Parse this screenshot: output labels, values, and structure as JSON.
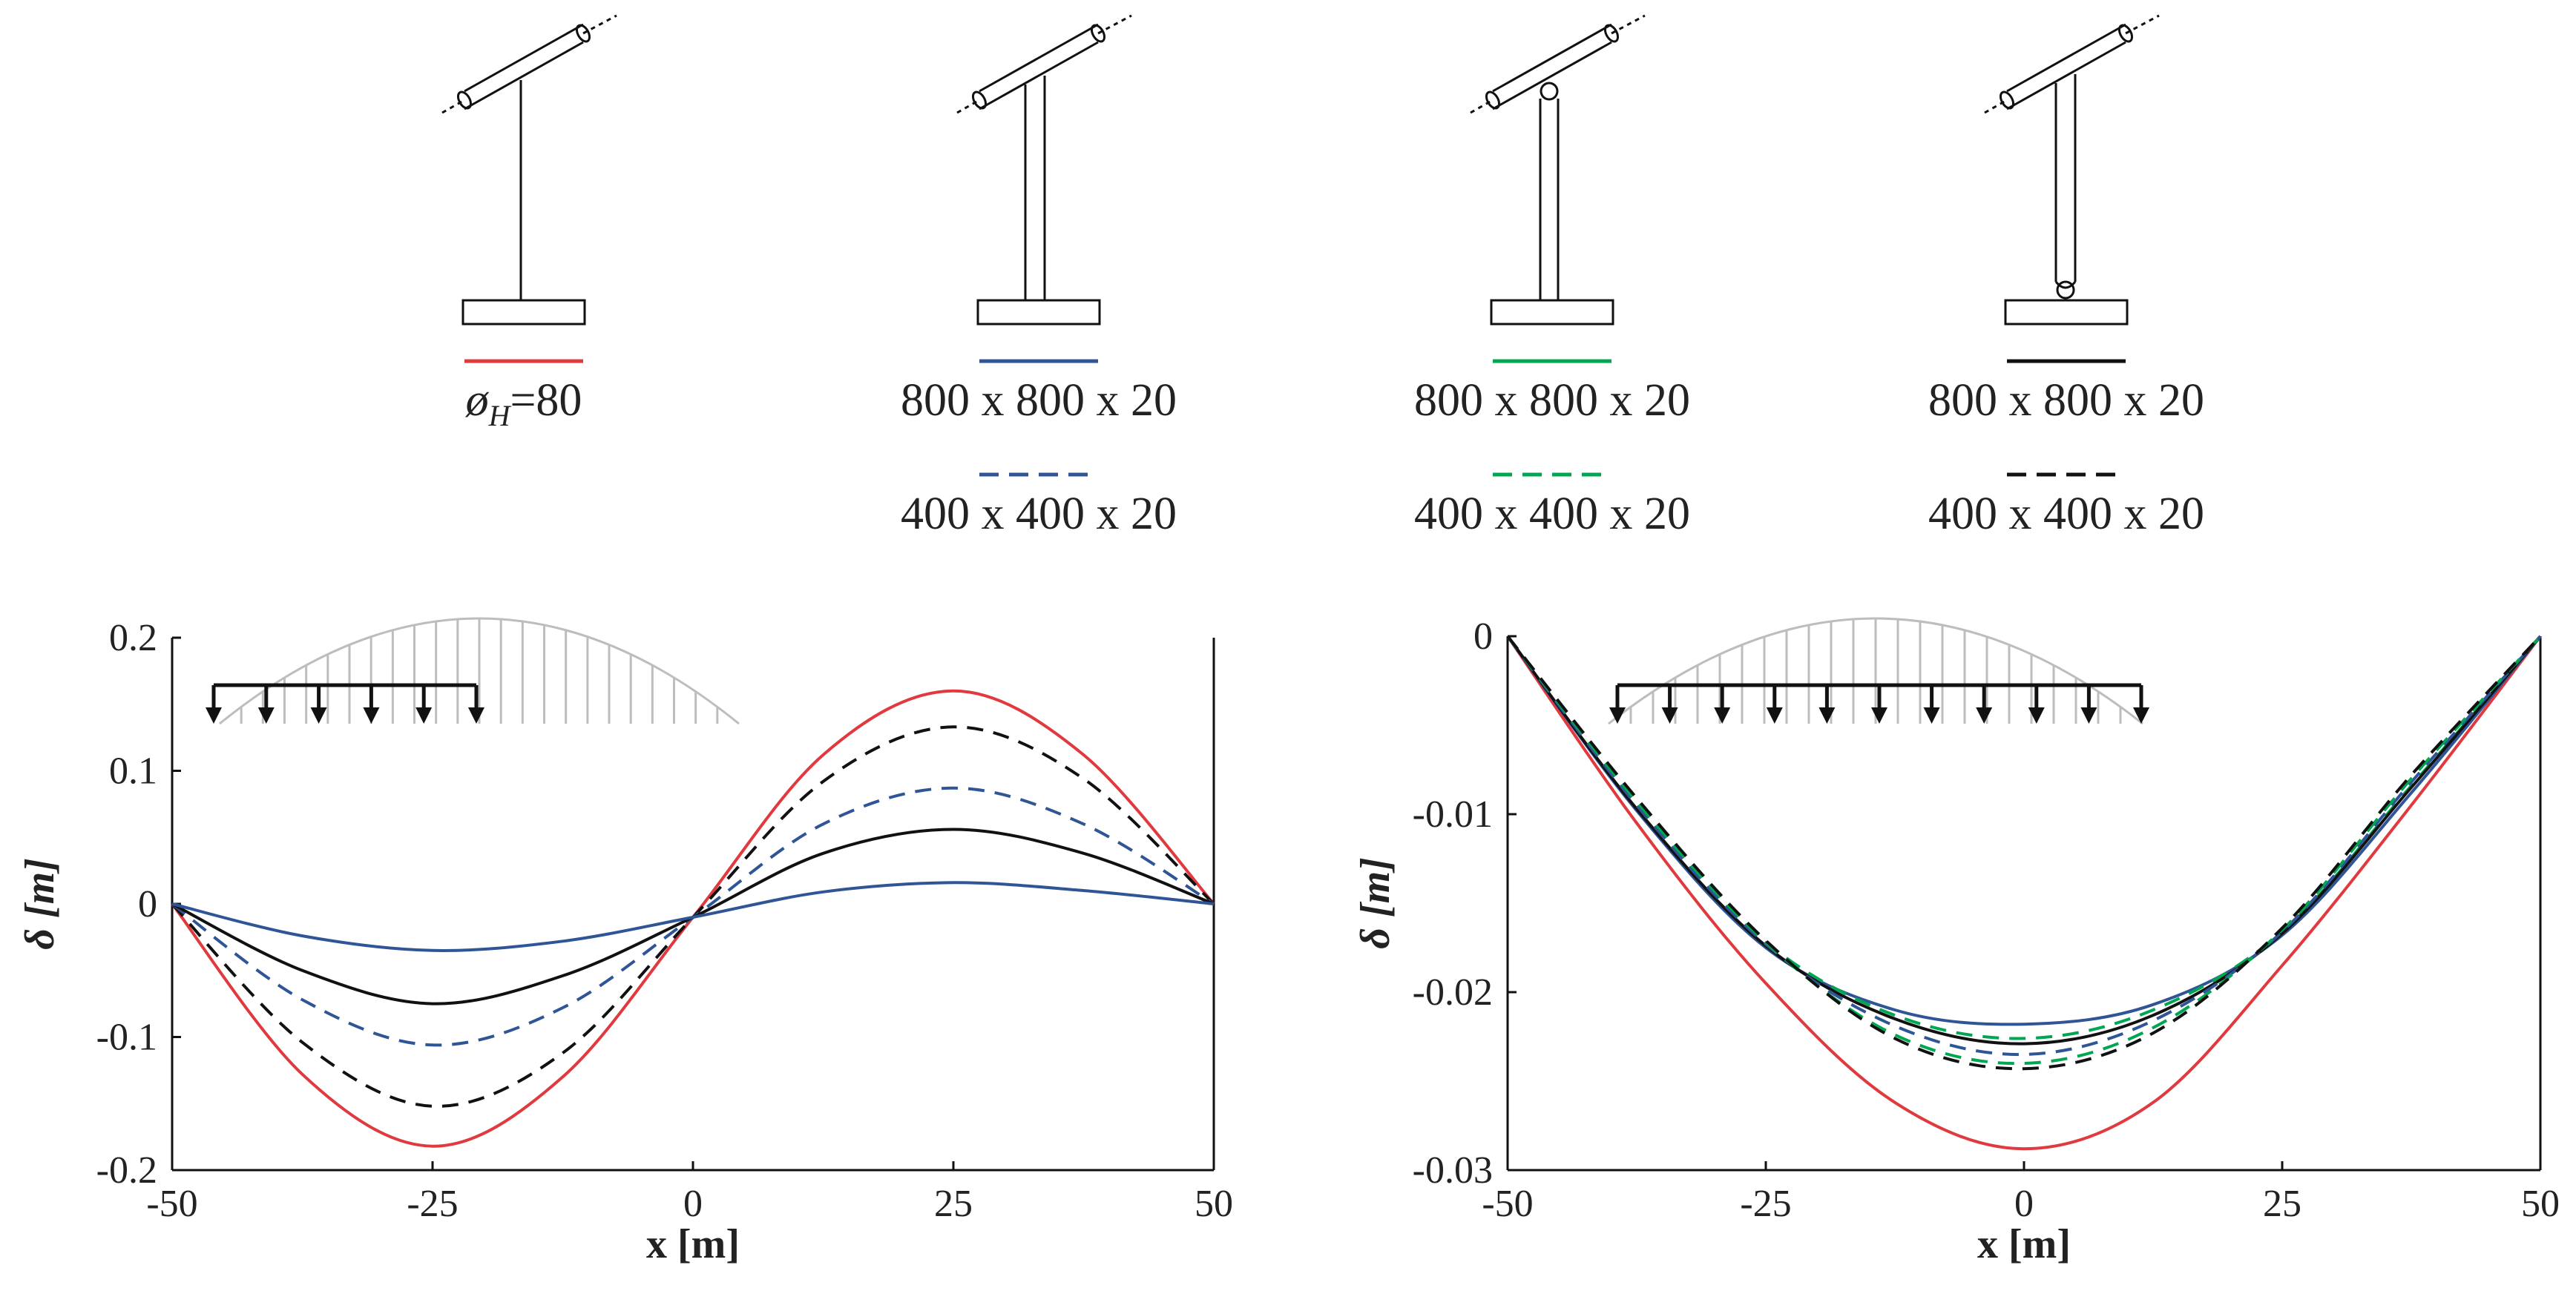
{
  "legend": {
    "items": [
      {
        "label": "ø",
        "sub": "H",
        "value": "=80",
        "color": "#e0393e",
        "dash": "solid"
      },
      {
        "label": "800 x 800 x 20",
        "color": "#2f5597",
        "dash": "solid"
      },
      {
        "label": "400 x 400 x 20",
        "color": "#2f5597",
        "dash": "dashed"
      },
      {
        "label": "800 x 800 x 20",
        "color": "#00a651",
        "dash": "solid"
      },
      {
        "label": "400 x 400 x 20",
        "color": "#00a651",
        "dash": "dashed"
      },
      {
        "label": "800 x 800 x 20",
        "color": "#111111",
        "dash": "solid"
      },
      {
        "label": "400 x 400 x 20",
        "color": "#111111",
        "dash": "dashed"
      }
    ],
    "icons": [
      "cable-hanger-icon",
      "fixed-tube-hanger-icon",
      "top-hinged-tube-hanger-icon",
      "bottom-hinged-tube-hanger-icon"
    ]
  },
  "chart_data": [
    {
      "type": "line",
      "load_case": "antisymmetric",
      "xlabel": "x [m]",
      "ylabel": "δ [m]",
      "xlim": [
        -50,
        50
      ],
      "ylim": [
        -0.2,
        0.2
      ],
      "xticks": [
        "-50",
        "-25",
        "0",
        "25",
        "50"
      ],
      "yticks": [
        "0.2",
        "0.1",
        "0",
        "-0.1",
        "-0.2"
      ],
      "x": [
        -50,
        -37.5,
        -25,
        -12.5,
        0,
        12.5,
        25,
        37.5,
        50
      ],
      "series": [
        {
          "color": "#e0393e",
          "dash": "solid",
          "values": [
            0,
            -0.128,
            -0.182,
            -0.13,
            -0.01,
            0.112,
            0.16,
            0.112,
            0
          ]
        },
        {
          "color": "#111111",
          "dash": "dashed",
          "values": [
            0,
            -0.104,
            -0.152,
            -0.112,
            -0.01,
            0.092,
            0.133,
            0.094,
            0
          ]
        },
        {
          "color": "#2f5597",
          "dash": "dashed",
          "values": [
            0,
            -0.072,
            -0.106,
            -0.078,
            -0.01,
            0.06,
            0.087,
            0.06,
            0
          ]
        },
        {
          "color": "#111111",
          "dash": "solid",
          "values": [
            0,
            -0.05,
            -0.075,
            -0.054,
            -0.01,
            0.038,
            0.056,
            0.038,
            0
          ]
        },
        {
          "color": "#2f5597",
          "dash": "solid",
          "values": [
            0,
            -0.024,
            -0.035,
            -0.028,
            -0.01,
            0.009,
            0.016,
            0.01,
            0
          ]
        }
      ]
    },
    {
      "type": "line",
      "load_case": "symmetric",
      "xlabel": "x [m]",
      "ylabel": "δ [m]",
      "xlim": [
        -50,
        50
      ],
      "ylim": [
        -0.03,
        0
      ],
      "xticks": [
        "-50",
        "-25",
        "0",
        "25",
        "50"
      ],
      "yticks": [
        "0",
        "-0.01",
        "-0.02",
        "-0.03"
      ],
      "x": [
        -50,
        -37.5,
        -25,
        -12.5,
        0,
        12.5,
        25,
        37.5,
        50
      ],
      "series": [
        {
          "color": "#e0393e",
          "dash": "solid",
          "values": [
            0,
            -0.0105,
            -0.0195,
            -0.0262,
            -0.0288,
            -0.0262,
            -0.0185,
            -0.0095,
            0
          ]
        },
        {
          "color": "#2f5597",
          "dash": "solid",
          "values": [
            0,
            -0.0098,
            -0.0175,
            -0.021,
            -0.0218,
            -0.0207,
            -0.0168,
            -0.0088,
            0
          ]
        },
        {
          "color": "#00a651",
          "dash": "dashed",
          "values": [
            0,
            -0.0096,
            -0.0172,
            -0.0213,
            -0.0226,
            -0.021,
            -0.0166,
            -0.0084,
            0
          ]
        },
        {
          "color": "#111111",
          "dash": "solid",
          "values": [
            0,
            -0.0097,
            -0.0174,
            -0.0215,
            -0.0229,
            -0.0213,
            -0.0167,
            -0.0085,
            0
          ]
        },
        {
          "color": "#2f5597",
          "dash": "dashed",
          "values": [
            0,
            -0.0095,
            -0.0173,
            -0.0219,
            -0.0235,
            -0.0216,
            -0.0166,
            -0.0082,
            0
          ]
        },
        {
          "color": "#00a651",
          "dash": "dashed",
          "values": [
            0,
            -0.0093,
            -0.0172,
            -0.0224,
            -0.024,
            -0.022,
            -0.0165,
            -0.008,
            0
          ]
        },
        {
          "color": "#111111",
          "dash": "dashed",
          "values": [
            0,
            -0.0091,
            -0.0171,
            -0.0226,
            -0.0243,
            -0.0223,
            -0.0164,
            -0.0078,
            0
          ]
        }
      ]
    }
  ]
}
